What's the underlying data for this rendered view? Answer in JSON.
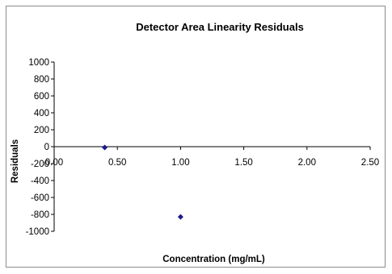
{
  "chart_data": {
    "type": "scatter",
    "title": "Detector Area Linearity Residuals",
    "xlabel": "Concentration (mg/mL)",
    "ylabel": "Residuals",
    "xlim": [
      0,
      2.5
    ],
    "ylim": [
      -1000,
      1000
    ],
    "x_ticks": [
      0,
      0.5,
      1.0,
      1.5,
      2.0,
      2.5
    ],
    "x_tick_labels": [
      "0.00",
      "0.50",
      "1.00",
      "1.50",
      "2.00",
      "2.50"
    ],
    "y_ticks": [
      1000,
      800,
      600,
      400,
      200,
      0,
      -200,
      -400,
      -600,
      -800,
      -1000
    ],
    "y_tick_labels": [
      "1000",
      "800",
      "600",
      "400",
      "200",
      "0",
      "-200",
      "-400",
      "-600",
      "-800",
      "-1000"
    ],
    "grid": false,
    "legend": "none",
    "series": [
      {
        "x": [
          0.4,
          1.0
        ],
        "y": [
          -10,
          -830
        ],
        "color": "#1a1a8c",
        "marker": "diamond"
      }
    ]
  }
}
